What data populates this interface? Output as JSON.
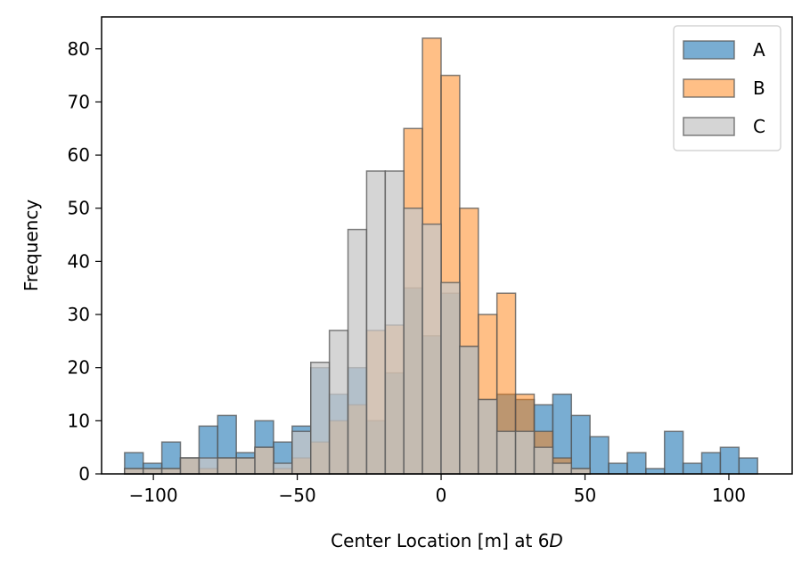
{
  "chart_data": {
    "type": "histogram",
    "xlabel": "Center Location [m] at 6",
    "xlabel_italic": "D",
    "ylabel": "Frequency",
    "xlim": [
      -118,
      122
    ],
    "ylim": [
      0,
      86
    ],
    "x_ticks": [
      -100,
      -50,
      0,
      50,
      100
    ],
    "x_tick_labels": [
      "−100",
      "−50",
      "0",
      "50",
      "100"
    ],
    "y_ticks": [
      0,
      10,
      20,
      30,
      40,
      50,
      60,
      70,
      80
    ],
    "y_tick_labels": [
      "0",
      "10",
      "20",
      "30",
      "40",
      "50",
      "60",
      "70",
      "80"
    ],
    "grid": false,
    "legend_position": "top-right",
    "bin_start": -110,
    "bin_width": 6.47,
    "series": [
      {
        "name": "A",
        "color": "#1f77b4",
        "alpha": 0.6,
        "counts": [
          4,
          2,
          6,
          3,
          9,
          11,
          4,
          10,
          6,
          9,
          20,
          15,
          20,
          10,
          19,
          35,
          26,
          34,
          24,
          14,
          15,
          14,
          13,
          15,
          11,
          7,
          2,
          4,
          1,
          8,
          2,
          4,
          5,
          3
        ]
      },
      {
        "name": "B",
        "color": "#ff7f0e",
        "alpha": 0.5,
        "counts": [
          1,
          1,
          1,
          3,
          1,
          3,
          3,
          5,
          1,
          3,
          6,
          10,
          13,
          27,
          28,
          65,
          82,
          75,
          50,
          30,
          34,
          15,
          8,
          3,
          1,
          0,
          0,
          0,
          0,
          0,
          0,
          0,
          0,
          0
        ]
      },
      {
        "name": "C",
        "color": "#c7c7c7",
        "alpha": 0.75,
        "counts": [
          1,
          1,
          1,
          3,
          3,
          3,
          3,
          5,
          2,
          8,
          21,
          27,
          46,
          57,
          57,
          50,
          47,
          36,
          24,
          14,
          8,
          8,
          5,
          2,
          1,
          0,
          0,
          0,
          0,
          0,
          0,
          0,
          0,
          0
        ]
      }
    ]
  }
}
